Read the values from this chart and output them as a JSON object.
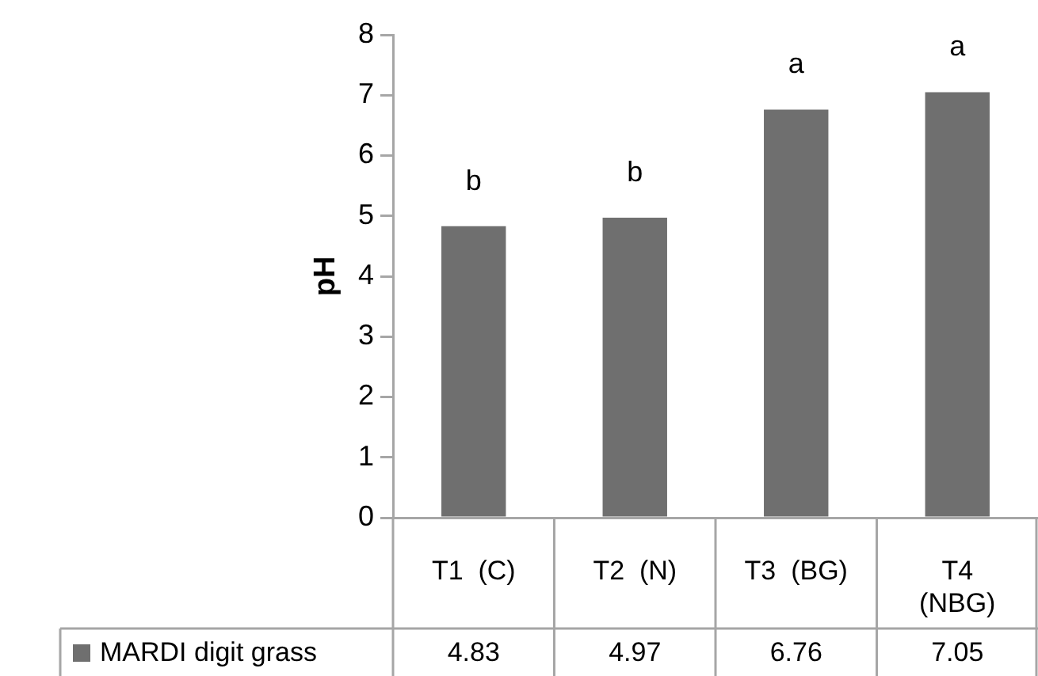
{
  "chart_data": {
    "type": "bar",
    "ylabel": "pH",
    "categories": [
      "T1  (C)",
      "T2  (N)",
      "T3  (BG)",
      "T4\n(NBG)"
    ],
    "series": [
      {
        "name": "MARDI digit grass",
        "color": "#6f6f6f",
        "values": [
          4.83,
          4.97,
          6.76,
          7.05
        ]
      }
    ],
    "ylim": [
      0,
      8
    ],
    "yticks": [
      0,
      1,
      2,
      3,
      4,
      5,
      6,
      7,
      8
    ],
    "data_labels": true,
    "legend": "bottom",
    "annotations": [
      "b",
      "b",
      "a",
      "a"
    ]
  }
}
